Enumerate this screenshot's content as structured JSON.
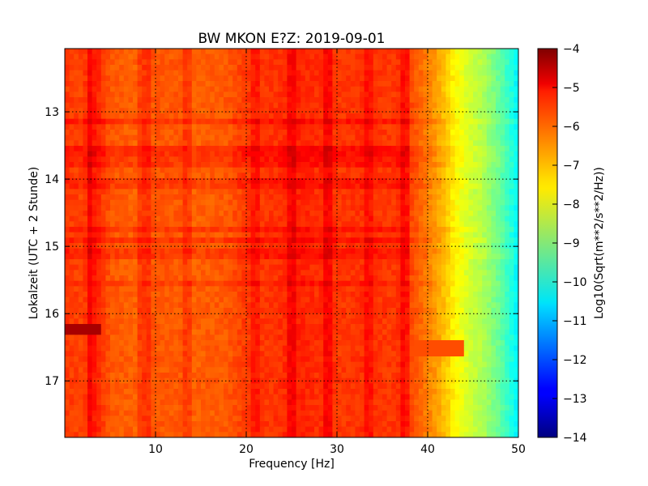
{
  "chart_data": {
    "type": "heatmap",
    "title": "BW MKON E?Z: 2019-09-01",
    "xlabel": "Frequency [Hz]",
    "ylabel": "Lokalzeit (UTC + 2 Stunde)",
    "xlim": [
      0,
      50
    ],
    "ylim": [
      12.06,
      17.84
    ],
    "y_inverted": true,
    "x_ticks": [
      10,
      20,
      30,
      40,
      50
    ],
    "x_tick_labels": [
      "10",
      "20",
      "30",
      "40",
      "50"
    ],
    "y_ticks": [
      13,
      14,
      15,
      16,
      17
    ],
    "y_tick_labels": [
      "13",
      "14",
      "15",
      "16",
      "17"
    ],
    "grid": true,
    "colormap": "jet",
    "colorbar": {
      "label": "Log10(Sqrt(m**2/s**2/Hz))",
      "range": [
        -14,
        -4
      ],
      "ticks": [
        -4,
        -5,
        -6,
        -7,
        -8,
        -9,
        -10,
        -11,
        -12,
        -13,
        -14
      ],
      "tick_labels": [
        "−4",
        "−5",
        "−6",
        "−7",
        "−8",
        "−9",
        "−10",
        "−11",
        "−12",
        "−13",
        "−14"
      ]
    },
    "spectral_profile": {
      "frequency_hz": [
        0,
        2,
        3,
        5,
        8,
        9,
        10,
        13,
        14,
        18,
        20,
        21,
        24,
        25,
        28,
        29,
        30,
        33,
        36,
        37.5,
        38,
        39,
        40,
        41,
        42,
        43,
        44,
        45,
        46,
        47,
        48,
        49,
        50
      ],
      "log10_amplitude": [
        -5.8,
        -5.9,
        -5.4,
        -6.1,
        -6.2,
        -6.0,
        -6.1,
        -6.1,
        -6.2,
        -6.1,
        -5.8,
        -5.8,
        -5.7,
        -5.5,
        -5.7,
        -5.5,
        -5.8,
        -5.7,
        -5.8,
        -5.6,
        -5.9,
        -6.2,
        -6.5,
        -6.8,
        -7.2,
        -7.7,
        -8.0,
        -8.3,
        -8.5,
        -8.9,
        -9.3,
        -9.8,
        -10.4
      ]
    },
    "frequency_lines_hz": [
      2.6,
      8.5,
      9.1,
      13.5,
      21.0,
      25.0,
      29.0,
      33.5,
      37.5
    ],
    "time_bands_hours": [
      {
        "t": 13.15,
        "dB": 0.35
      },
      {
        "t": 13.6,
        "dB": 0.4
      },
      {
        "t": 13.75,
        "dB": 0.3
      },
      {
        "t": 14.05,
        "dB": 0.25
      },
      {
        "t": 14.75,
        "dB": 0.3
      },
      {
        "t": 14.9,
        "dB": 0.35
      },
      {
        "t": 15.1,
        "dB": 0.3
      },
      {
        "t": 15.55,
        "dB": 0.25
      }
    ],
    "burst_events": [
      {
        "t": 16.25,
        "f_max_hz": 4.0,
        "log10_amplitude": -4.4
      },
      {
        "t": 16.52,
        "f_min_hz": 36.0,
        "f_max_hz": 44.0,
        "log10_amplitude": -6.0
      }
    ]
  }
}
